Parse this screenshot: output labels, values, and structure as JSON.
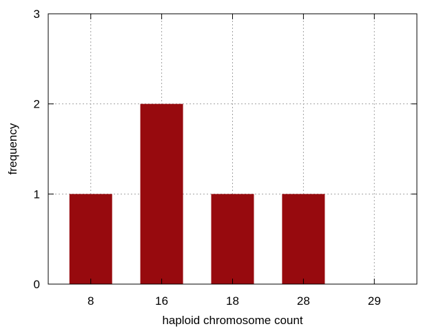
{
  "chart_data": {
    "type": "bar",
    "title": "",
    "xlabel": "haploid chromosome count",
    "ylabel": "frequency",
    "categories": [
      "8",
      "16",
      "18",
      "28",
      "29"
    ],
    "values": [
      1,
      2,
      1,
      1,
      0
    ],
    "ylim": [
      0,
      3
    ],
    "yticks": [
      "0",
      "1",
      "2",
      "3"
    ],
    "grid": true,
    "legend": "none",
    "colors": {
      "bar": "#970a0e",
      "grid": "#a0a0a0",
      "axis": "#000000"
    }
  }
}
